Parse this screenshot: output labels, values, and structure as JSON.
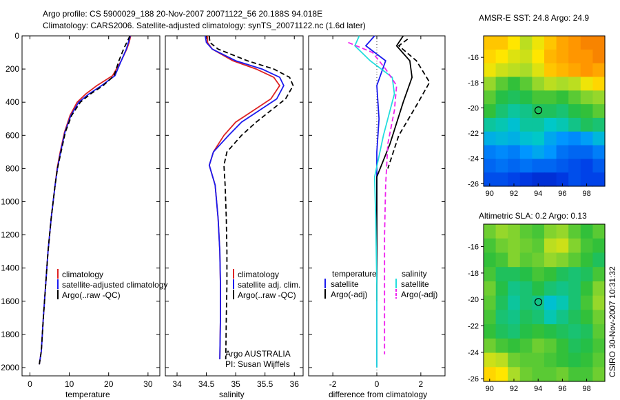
{
  "header": {
    "line1": "Argo profile: CS 5900029_188 20-Nov-2007 20071122_56 20.188S 94.018E",
    "line2": "Climatology: CARS2006. Satellite-adjusted climatology: synTS_20071122.nc (1.6d later)"
  },
  "colors": {
    "climatology": "#dd2222",
    "satellite": "#1a1aee",
    "argo": "#000000",
    "cyan": "#22dddd",
    "magenta": "#ee22ee"
  },
  "chart_data": [
    {
      "type": "line",
      "name": "temperature-profile",
      "xlabel": "temperature",
      "ylabel": "",
      "xlim": [
        -2,
        33
      ],
      "ylim": [
        2050,
        0
      ],
      "xticks": [
        "0",
        "10",
        "20",
        "30"
      ],
      "xtick_values": [
        0,
        10,
        20,
        30
      ],
      "yticks": [
        "0",
        "200",
        "400",
        "600",
        "800",
        "1000",
        "1200",
        "1400",
        "1600",
        "1800",
        "2000"
      ],
      "ytick_values": [
        0,
        200,
        400,
        600,
        800,
        1000,
        1200,
        1400,
        1600,
        1800,
        2000
      ],
      "legend": [
        "climatology",
        "satellite-adjusted climatology",
        "Argo(..raw -QC)"
      ],
      "legend_position": "lower-right",
      "series": [
        {
          "name": "climatology",
          "color": "red",
          "dash": "solid",
          "x": [
            25.6,
            25.2,
            24.6,
            23.2,
            21.0,
            17.0,
            14.2,
            12.0,
            10.2,
            8.8,
            7.7,
            6.9,
            6.4,
            5.4,
            4.6,
            4.0,
            3.4,
            2.9,
            2.4
          ],
          "y": [
            0,
            40,
            80,
            150,
            240,
            300,
            350,
            400,
            480,
            580,
            700,
            800,
            900,
            1100,
            1300,
            1500,
            1700,
            1900,
            1980
          ]
        },
        {
          "name": "satellite-adjusted climatology",
          "color": "blue",
          "dash": "solid",
          "x": [
            25.5,
            25.0,
            24.5,
            23.2,
            21.6,
            18.2,
            15.0,
            12.4,
            10.4,
            8.9,
            7.8,
            7.0,
            6.4,
            5.4,
            4.6,
            4.0,
            3.4,
            2.9,
            2.4
          ],
          "y": [
            0,
            40,
            80,
            150,
            240,
            300,
            350,
            400,
            480,
            580,
            700,
            800,
            900,
            1100,
            1300,
            1500,
            1700,
            1900,
            1980
          ]
        },
        {
          "name": "Argo(..raw -QC)",
          "color": "black",
          "dash": "dashed",
          "x": [
            25.4,
            24.6,
            23.8,
            22.6,
            21.4,
            18.6,
            15.4,
            12.8,
            10.6,
            9.0,
            7.9,
            7.0,
            6.4,
            5.4,
            4.6,
            4.0,
            3.4,
            2.9,
            2.4
          ],
          "y": [
            0,
            40,
            80,
            150,
            240,
            300,
            350,
            400,
            480,
            580,
            700,
            800,
            900,
            1100,
            1300,
            1500,
            1700,
            1900,
            1980
          ]
        }
      ]
    },
    {
      "type": "line",
      "name": "salinity-profile",
      "xlabel": "salinity",
      "xlim": [
        33.8,
        36.15
      ],
      "ylim": [
        2050,
        0
      ],
      "xticks": [
        "34",
        "34.5",
        "35",
        "35.5",
        "36"
      ],
      "xtick_values": [
        34,
        34.5,
        35,
        35.5,
        36
      ],
      "legend": [
        "climatology",
        "satellite adj. clim.",
        "Argo(..raw -QC)"
      ],
      "legend_position": "lower-right",
      "annotations": [
        "Argo AUSTRALIA",
        "PI: Susan Wijffels"
      ],
      "series": [
        {
          "name": "climatology",
          "color": "red",
          "dash": "solid",
          "x": [
            34.52,
            34.52,
            34.6,
            34.95,
            35.35,
            35.65,
            35.75,
            35.6,
            35.3,
            35.0,
            34.8,
            34.62,
            34.55,
            34.65,
            34.7,
            34.73,
            34.74,
            34.74,
            34.73
          ],
          "y": [
            0,
            40,
            80,
            150,
            200,
            250,
            300,
            380,
            450,
            520,
            600,
            700,
            780,
            900,
            1100,
            1300,
            1500,
            1700,
            1950
          ]
        },
        {
          "name": "satellite adj. clim.",
          "color": "blue",
          "dash": "solid",
          "x": [
            34.48,
            34.5,
            34.6,
            35.0,
            35.45,
            35.75,
            35.82,
            35.7,
            35.4,
            35.1,
            34.88,
            34.62,
            34.55,
            34.65,
            34.7,
            34.73,
            34.74,
            34.74,
            34.73
          ],
          "y": [
            0,
            40,
            80,
            150,
            200,
            250,
            300,
            380,
            450,
            520,
            600,
            700,
            780,
            900,
            1100,
            1300,
            1500,
            1700,
            1950
          ]
        },
        {
          "name": "Argo(..raw -QC)",
          "color": "black",
          "dash": "dashed",
          "x": [
            34.55,
            34.56,
            34.7,
            35.2,
            35.65,
            35.92,
            35.98,
            35.85,
            35.6,
            35.35,
            35.1,
            34.85,
            34.8,
            34.82,
            34.84,
            34.85,
            34.85,
            34.84,
            34.83
          ],
          "y": [
            0,
            40,
            80,
            150,
            200,
            250,
            300,
            380,
            450,
            520,
            600,
            700,
            780,
            900,
            1100,
            1300,
            1500,
            1700,
            1950
          ]
        }
      ]
    },
    {
      "type": "line",
      "name": "difference-profile",
      "xlabel": "difference from climatology",
      "xlim": [
        -3.1,
        3.1
      ],
      "ylim": [
        2050,
        0
      ],
      "xticks": [
        "-2",
        "0",
        "2"
      ],
      "xtick_values": [
        -2,
        0,
        2
      ],
      "legend_groups": [
        {
          "heading": "temperature",
          "items": [
            "satellite",
            "Argo(-adj)"
          ]
        },
        {
          "heading": "salinity",
          "items": [
            "satellite",
            "Argo(-adj)"
          ]
        }
      ],
      "series": [
        {
          "name": "temperature satellite",
          "color": "blue",
          "dash": "solid",
          "x": [
            -0.1,
            -0.5,
            0.4,
            0.0,
            0.1,
            0.0,
            0.0,
            0.0,
            0.0,
            0.0
          ],
          "y": [
            0,
            60,
            150,
            300,
            500,
            700,
            900,
            1200,
            1600,
            2000
          ]
        },
        {
          "name": "temperature Argo(-adj)",
          "color": "black",
          "dash": "solid",
          "x": [
            1.2,
            0.9,
            1.5,
            1.6,
            1.2,
            0.6,
            0.0,
            0.0,
            0.0
          ],
          "y": [
            0,
            60,
            150,
            250,
            400,
            650,
            850,
            1200,
            1600
          ]
        },
        {
          "name": "salinity satellite",
          "color": "cyan",
          "dash": "solid",
          "x": [
            -0.8,
            -1.0,
            -0.3,
            0.7,
            0.8,
            0.3,
            -0.1,
            -0.05,
            0.0,
            0.0
          ],
          "y": [
            0,
            60,
            150,
            250,
            350,
            600,
            850,
            1100,
            1500,
            2000
          ]
        },
        {
          "name": "salinity Argo(-adj)",
          "color": "magenta",
          "dash": "dashed",
          "x": [
            -1.3,
            -0.2,
            0.4,
            0.9,
            0.8,
            0.5,
            0.4,
            0.35,
            0.35,
            0.35
          ],
          "y": [
            40,
            100,
            200,
            300,
            450,
            650,
            900,
            1200,
            1600,
            1920
          ]
        },
        {
          "name": "Argo raw difference",
          "color": "black",
          "dash": "dashed",
          "x": [
            1.4,
            1.0,
            1.8,
            2.4,
            1.8,
            1.0,
            0.5
          ],
          "y": [
            20,
            60,
            150,
            280,
            420,
            600,
            800
          ]
        }
      ]
    },
    {
      "type": "heatmap",
      "name": "sst-map",
      "title": "AMSR-E SST: 24.8 Argo: 24.9",
      "xlim": [
        89.5,
        99.5
      ],
      "ylim": [
        -26.2,
        -14.3
      ],
      "xticks": [
        "90",
        "92",
        "94",
        "96",
        "98"
      ],
      "xtick_values": [
        90,
        92,
        94,
        96,
        98
      ],
      "yticks": [
        "-16",
        "-18",
        "-20",
        "-22",
        "-24",
        "-26"
      ],
      "ytick_values": [
        -16,
        -18,
        -20,
        -22,
        -24,
        -26
      ],
      "marker": {
        "lon": 94.018,
        "lat": -20.188
      },
      "rows_top_to_bottom": [
        [
          0.82,
          0.82,
          0.78,
          0.7,
          0.76,
          0.82,
          0.86,
          0.88,
          0.9,
          0.9
        ],
        [
          0.8,
          0.78,
          0.74,
          0.72,
          0.78,
          0.84,
          0.86,
          0.88,
          0.88,
          0.9
        ],
        [
          0.76,
          0.72,
          0.7,
          0.68,
          0.74,
          0.82,
          0.84,
          0.86,
          0.88,
          0.86
        ],
        [
          0.66,
          0.6,
          0.56,
          0.6,
          0.66,
          0.7,
          0.68,
          0.7,
          0.76,
          0.8
        ],
        [
          0.6,
          0.54,
          0.52,
          0.54,
          0.58,
          0.58,
          0.56,
          0.6,
          0.64,
          0.66
        ],
        [
          0.56,
          0.5,
          0.46,
          0.48,
          0.52,
          0.52,
          0.5,
          0.54,
          0.56,
          0.6
        ],
        [
          0.46,
          0.44,
          0.4,
          0.46,
          0.46,
          0.42,
          0.44,
          0.48,
          0.52,
          0.5
        ],
        [
          0.36,
          0.38,
          0.36,
          0.4,
          0.42,
          0.34,
          0.3,
          0.28,
          0.32,
          0.38
        ],
        [
          0.26,
          0.28,
          0.26,
          0.3,
          0.34,
          0.3,
          0.24,
          0.22,
          0.22,
          0.26
        ],
        [
          0.22,
          0.24,
          0.22,
          0.24,
          0.22,
          0.22,
          0.2,
          0.18,
          0.16,
          0.2
        ],
        [
          0.18,
          0.18,
          0.16,
          0.14,
          0.12,
          0.12,
          0.14,
          0.18,
          0.16,
          0.16
        ]
      ]
    },
    {
      "type": "heatmap",
      "name": "sla-map",
      "title": "Altimetric SLA: 0.2 Argo: 0.13",
      "xlim": [
        89.5,
        99.5
      ],
      "ylim": [
        -26.2,
        -14.3
      ],
      "xticks": [
        "90",
        "92",
        "94",
        "96",
        "98"
      ],
      "xtick_values": [
        90,
        92,
        94,
        96,
        98
      ],
      "yticks": [
        "-16",
        "-18",
        "-20",
        "-22",
        "-24",
        "-26"
      ],
      "ytick_values": [
        -16,
        -18,
        -20,
        -22,
        -24,
        -26
      ],
      "marker": {
        "lon": 94.018,
        "lat": -20.188
      },
      "rows_top_to_bottom": [
        [
          0.62,
          0.66,
          0.64,
          0.6,
          0.58,
          0.64,
          0.66,
          0.6,
          0.56,
          0.6
        ],
        [
          0.58,
          0.62,
          0.64,
          0.62,
          0.6,
          0.7,
          0.72,
          0.64,
          0.58,
          0.56
        ],
        [
          0.56,
          0.58,
          0.64,
          0.6,
          0.62,
          0.66,
          0.64,
          0.6,
          0.56,
          0.52
        ],
        [
          0.58,
          0.52,
          0.52,
          0.54,
          0.58,
          0.56,
          0.52,
          0.5,
          0.52,
          0.58
        ],
        [
          0.62,
          0.54,
          0.48,
          0.5,
          0.54,
          0.5,
          0.48,
          0.5,
          0.56,
          0.64
        ],
        [
          0.6,
          0.52,
          0.46,
          0.5,
          0.48,
          0.4,
          0.44,
          0.5,
          0.58,
          0.66
        ],
        [
          0.58,
          0.5,
          0.48,
          0.52,
          0.5,
          0.44,
          0.48,
          0.52,
          0.56,
          0.62
        ],
        [
          0.56,
          0.52,
          0.5,
          0.54,
          0.56,
          0.54,
          0.52,
          0.5,
          0.52,
          0.6
        ],
        [
          0.62,
          0.58,
          0.56,
          0.58,
          0.62,
          0.6,
          0.56,
          0.52,
          0.54,
          0.58
        ],
        [
          0.72,
          0.7,
          0.62,
          0.6,
          0.6,
          0.58,
          0.56,
          0.54,
          0.56,
          0.6
        ],
        [
          0.8,
          0.78,
          0.68,
          0.62,
          0.6,
          0.6,
          0.62,
          0.58,
          0.58,
          0.62
        ]
      ]
    }
  ],
  "side_label": "CSIRO 30-Nov-2007 10:31:32"
}
